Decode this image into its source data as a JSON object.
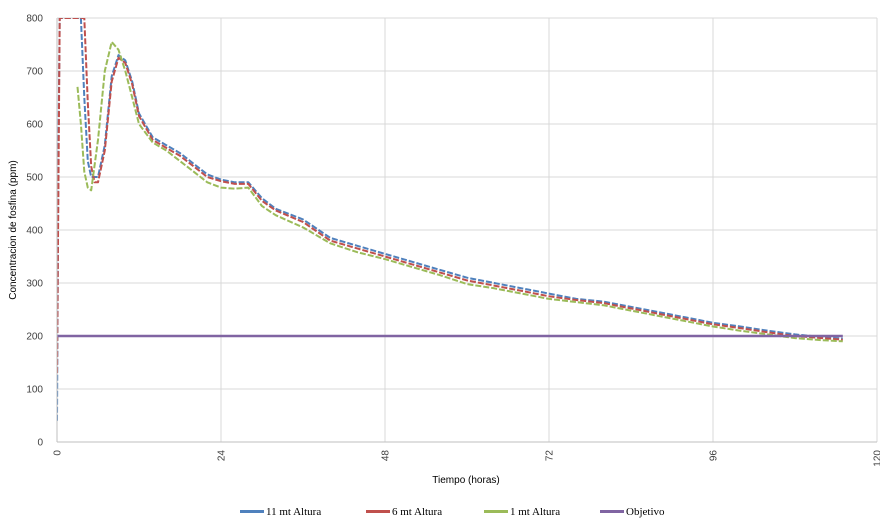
{
  "chart_data": {
    "type": "line",
    "title": "",
    "xlabel": "Tiempo (horas)",
    "ylabel": "Concentracion de fosfina (ppm)",
    "xlim": [
      0,
      120
    ],
    "ylim": [
      0,
      800
    ],
    "xticks": [
      0,
      24,
      48,
      72,
      96,
      120
    ],
    "yticks": [
      0,
      100,
      200,
      300,
      400,
      500,
      600,
      700,
      800
    ],
    "grid": true,
    "legend_position": "bottom",
    "series": [
      {
        "name": "11 mt Altura",
        "color": "#4f81bd",
        "x": [
          0,
          0.2,
          0.4,
          3.5,
          4,
          4.5,
          5,
          6,
          7,
          8,
          9,
          10,
          11,
          12,
          14,
          16,
          18,
          20,
          22,
          24,
          26,
          28,
          30,
          32,
          36,
          40,
          44,
          48,
          52,
          56,
          60,
          64,
          68,
          72,
          76,
          80,
          84,
          88,
          92,
          96,
          100,
          104,
          108,
          112,
          115
        ],
        "y": [
          40,
          550,
          800,
          800,
          650,
          530,
          500,
          500,
          560,
          690,
          730,
          720,
          680,
          620,
          575,
          560,
          545,
          525,
          505,
          495,
          490,
          490,
          460,
          440,
          420,
          385,
          370,
          355,
          340,
          325,
          310,
          300,
          290,
          280,
          270,
          265,
          255,
          245,
          235,
          225,
          218,
          210,
          203,
          198,
          195
        ]
      },
      {
        "name": "6 mt Altura",
        "color": "#c0504d",
        "x": [
          0,
          0.2,
          0.4,
          4,
          4.5,
          5,
          5.5,
          6,
          7,
          8,
          9,
          10,
          11,
          12,
          14,
          16,
          18,
          20,
          22,
          24,
          26,
          28,
          30,
          32,
          36,
          40,
          44,
          48,
          52,
          56,
          60,
          64,
          68,
          72,
          76,
          80,
          84,
          88,
          92,
          96,
          100,
          104,
          108,
          112,
          115
        ],
        "y": [
          130,
          480,
          800,
          800,
          640,
          520,
          490,
          490,
          550,
          680,
          725,
          715,
          675,
          615,
          570,
          555,
          540,
          520,
          500,
          492,
          487,
          487,
          455,
          437,
          415,
          380,
          365,
          350,
          335,
          320,
          305,
          295,
          285,
          275,
          268,
          262,
          252,
          242,
          232,
          222,
          215,
          207,
          200,
          196,
          193
        ]
      },
      {
        "name": "1 mt Altura",
        "color": "#9bbb59",
        "x": [
          3,
          3.5,
          4,
          4.5,
          5,
          6,
          7,
          8,
          9,
          10,
          11,
          12,
          14,
          16,
          18,
          20,
          22,
          24,
          26,
          28,
          30,
          32,
          36,
          40,
          44,
          48,
          52,
          56,
          60,
          64,
          68,
          72,
          76,
          80,
          84,
          88,
          92,
          96,
          100,
          104,
          108,
          112,
          115
        ],
        "y": [
          670,
          600,
          510,
          480,
          475,
          570,
          700,
          755,
          740,
          700,
          650,
          600,
          565,
          550,
          530,
          510,
          490,
          480,
          478,
          480,
          445,
          428,
          405,
          375,
          358,
          345,
          330,
          315,
          298,
          290,
          280,
          270,
          264,
          258,
          248,
          238,
          228,
          218,
          210,
          203,
          196,
          192,
          190
        ]
      },
      {
        "name": "Objetivo",
        "color": "#8064a2",
        "x": [
          0,
          115
        ],
        "y": [
          200,
          200
        ]
      }
    ]
  }
}
